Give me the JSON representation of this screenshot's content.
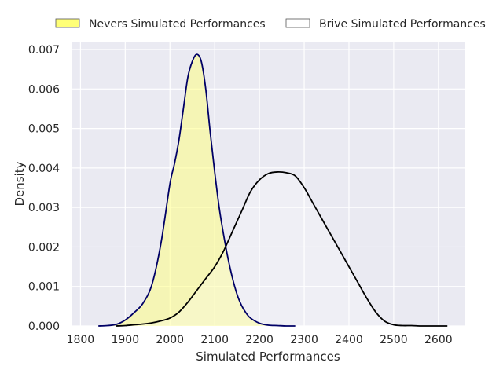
{
  "chart_data": {
    "type": "area",
    "xlabel": "Simulated Performances",
    "ylabel": "Density",
    "xlim": [
      1780,
      2660
    ],
    "ylim": [
      0,
      0.0072
    ],
    "x_ticks": [
      1800,
      1900,
      2000,
      2100,
      2200,
      2300,
      2400,
      2500,
      2600
    ],
    "y_ticks": [
      0.0,
      0.001,
      0.002,
      0.003,
      0.004,
      0.005,
      0.006,
      0.007
    ],
    "y_tick_labels": [
      "0.000",
      "0.001",
      "0.002",
      "0.003",
      "0.004",
      "0.005",
      "0.006",
      "0.007"
    ],
    "grid": true,
    "legend_position": "top",
    "series": [
      {
        "name": "Nevers Simulated Performances",
        "fill": "#ffff77",
        "line_color": "#000066",
        "x": [
          1840,
          1860,
          1880,
          1900,
          1920,
          1940,
          1960,
          1980,
          2000,
          2010,
          2020,
          2030,
          2040,
          2050,
          2060,
          2070,
          2080,
          2090,
          2100,
          2110,
          2120,
          2130,
          2140,
          2150,
          2160,
          2170,
          2180,
          2200,
          2220,
          2240,
          2260,
          2280
        ],
        "values": [
          0.0,
          1e-05,
          4e-05,
          0.00015,
          0.00034,
          0.00058,
          0.00106,
          0.0021,
          0.0036,
          0.0041,
          0.0047,
          0.0055,
          0.0063,
          0.0067,
          0.00688,
          0.0067,
          0.006,
          0.0049,
          0.0039,
          0.003,
          0.0023,
          0.0017,
          0.0012,
          0.0008,
          0.00052,
          0.00033,
          0.0002,
          7e-05,
          2e-05,
          1e-05,
          0.0,
          0.0
        ]
      },
      {
        "name": "Brive Simulated Performances",
        "fill": "#ffffff",
        "line_color": "#000000",
        "x": [
          1880,
          1900,
          1920,
          1940,
          1960,
          1980,
          2000,
          2020,
          2040,
          2060,
          2080,
          2100,
          2120,
          2140,
          2160,
          2180,
          2200,
          2220,
          2240,
          2260,
          2280,
          2300,
          2320,
          2340,
          2360,
          2380,
          2400,
          2420,
          2440,
          2460,
          2480,
          2500,
          2520,
          2540,
          2560,
          2580,
          2600,
          2620
        ],
        "values": [
          0.0,
          1e-05,
          3e-05,
          5e-05,
          8e-05,
          0.00013,
          0.0002,
          0.00035,
          0.0006,
          0.0009,
          0.0012,
          0.0015,
          0.0019,
          0.0024,
          0.0029,
          0.0034,
          0.0037,
          0.00386,
          0.0039,
          0.00388,
          0.0038,
          0.0035,
          0.0031,
          0.0027,
          0.0023,
          0.0019,
          0.0015,
          0.0011,
          0.0007,
          0.00035,
          0.00012,
          3e-05,
          1e-05,
          1e-05,
          0.0,
          0.0,
          0.0,
          0.0
        ]
      }
    ]
  }
}
